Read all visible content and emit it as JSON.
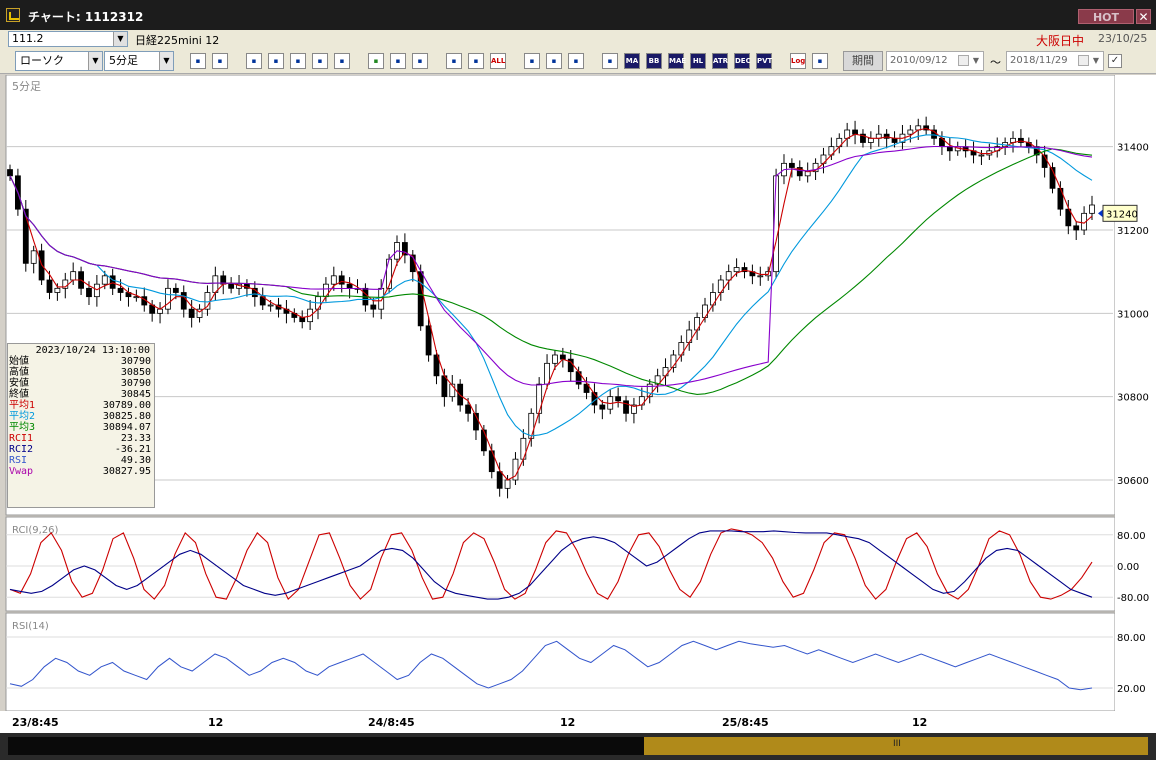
{
  "window": {
    "title": "チャート: 1112312",
    "hot_label": "HOT",
    "close_label": "✕"
  },
  "header": {
    "code": "111.2",
    "instrument": "日経225mini 12",
    "session": "大阪日中",
    "date": "23/10/25"
  },
  "toolbar": {
    "chart_type": "ローソク",
    "interval": "5分足",
    "buttons": [
      "zoom-icon",
      "crosshair-icon",
      "window-icon",
      "search-list-icon",
      "bar-chart-icon",
      "compare-icon",
      "alert-icon",
      "pencil-icon",
      "cursor-icon",
      "arrow-icon",
      "candle-icon",
      "bar-icon",
      "all-icon",
      "settings-icon",
      "tools-icon",
      "color-icon",
      "line-icon",
      "MA",
      "BB",
      "MAE",
      "HL",
      "ATR",
      "DEC",
      "PVT",
      "Log",
      "export-icon"
    ],
    "period_label": "期間",
    "start_date": "2010/09/12",
    "end_date": "2018/11/29",
    "tilde": "～",
    "check": "✓"
  },
  "info": {
    "timestamp": "2023/10/24  13:10:00",
    "rows": [
      {
        "label": "始値",
        "value": "30790"
      },
      {
        "label": "高値",
        "value": "30850"
      },
      {
        "label": "安値",
        "value": "30790"
      },
      {
        "label": "終値",
        "value": "30845"
      },
      {
        "label": "平均1",
        "value": "30789.00"
      },
      {
        "label": "平均2",
        "value": "30825.80"
      },
      {
        "label": "平均3",
        "value": "30894.07"
      },
      {
        "label": "RCI1",
        "value": "23.33"
      },
      {
        "label": "RCI2",
        "value": "-36.21"
      },
      {
        "label": "RSI",
        "value": "49.30"
      },
      {
        "label": "Vwap",
        "value": "30827.95"
      }
    ],
    "colors": [
      "#000000",
      "#000000",
      "#000000",
      "#000000",
      "#cc0000",
      "#0099dd",
      "#008800",
      "#cc0000",
      "#000088",
      "#3355cc",
      "#aa00aa"
    ]
  },
  "chart_data": [
    {
      "type": "candlestick",
      "panel_label": "5分足",
      "y_ticks": [
        "31400",
        "31200",
        "31000",
        "30800",
        "30600"
      ],
      "ylim": [
        30540,
        31560
      ],
      "last_price_label": "31240",
      "x_ticks": [
        "23/8:45",
        "12",
        "24/8:45",
        "12",
        "25/8:45",
        "12"
      ],
      "series": [
        {
          "name": "平均1",
          "color": "#cc0000"
        },
        {
          "name": "平均2",
          "color": "#0099dd"
        },
        {
          "name": "平均3",
          "color": "#008800"
        },
        {
          "name": "Vwap",
          "color": "#8800cc"
        }
      ],
      "close_path": [
        31330,
        31250,
        31120,
        31150,
        31080,
        31050,
        31060,
        31080,
        31100,
        31060,
        31040,
        31070,
        31090,
        31060,
        31050,
        31040,
        31040,
        31020,
        31000,
        31010,
        31060,
        31050,
        31010,
        30990,
        31010,
        31050,
        31090,
        31070,
        31060,
        31070,
        31060,
        31040,
        31020,
        31020,
        31010,
        31000,
        30990,
        30980,
        31010,
        31040,
        31070,
        31090,
        31070,
        31060,
        31060,
        31020,
        31010,
        31060,
        31130,
        31170,
        31140,
        31100,
        30970,
        30900,
        30850,
        30800,
        30830,
        30780,
        30760,
        30720,
        30670,
        30620,
        30580,
        30600,
        30650,
        30700,
        30760,
        30830,
        30880,
        30900,
        30890,
        30860,
        30830,
        30810,
        30780,
        30770,
        30800,
        30790,
        30760,
        30780,
        30800,
        30830,
        30850,
        30870,
        30900,
        30930,
        30960,
        30990,
        31020,
        31050,
        31080,
        31100,
        31110,
        31100,
        31090,
        31090,
        31100,
        31330,
        31360,
        31350,
        31330,
        31340,
        31360,
        31380,
        31400,
        31420,
        31440,
        31430,
        31410,
        31420,
        31430,
        31420,
        31410,
        31430,
        31440,
        31450,
        31440,
        31420,
        31400,
        31390,
        31400,
        31390,
        31380,
        31380,
        31390,
        31400,
        31410,
        31420,
        31410,
        31400,
        31380,
        31350,
        31300,
        31250,
        31210,
        31200,
        31240,
        31260
      ]
    },
    {
      "type": "line",
      "panel_label": "RCI(9,26)",
      "y_ticks": [
        "80.00",
        "0.00",
        "-80.00"
      ],
      "ylim": [
        -100,
        100
      ],
      "series": [
        {
          "name": "RCI1",
          "color": "#cc0000",
          "values": [
            -60,
            -70,
            -20,
            60,
            85,
            40,
            -40,
            -80,
            -70,
            -10,
            70,
            85,
            20,
            -60,
            -85,
            -50,
            30,
            85,
            60,
            -20,
            -80,
            -85,
            -30,
            40,
            85,
            60,
            -30,
            -85,
            -60,
            10,
            80,
            85,
            20,
            -50,
            -85,
            -60,
            20,
            80,
            85,
            40,
            -30,
            -85,
            -80,
            -20,
            60,
            85,
            70,
            10,
            -60,
            -85,
            -70,
            -10,
            60,
            90,
            85,
            40,
            -20,
            -70,
            -85,
            -40,
            30,
            80,
            85,
            50,
            -10,
            -60,
            -80,
            -40,
            30,
            85,
            95,
            90,
            80,
            60,
            20,
            -40,
            -80,
            -70,
            -10,
            60,
            85,
            80,
            20,
            -50,
            -85,
            -60,
            10,
            70,
            85,
            50,
            -20,
            -70,
            -85,
            -60,
            0,
            70,
            90,
            80,
            30,
            -40,
            -80,
            -85,
            -75,
            -60,
            -30,
            10
          ]
        },
        {
          "name": "RCI2",
          "color": "#000088",
          "values": [
            -60,
            -65,
            -70,
            -65,
            -50,
            -30,
            -10,
            0,
            -10,
            -30,
            -50,
            -60,
            -50,
            -30,
            -10,
            10,
            30,
            40,
            30,
            10,
            -10,
            -30,
            -50,
            -60,
            -70,
            -75,
            -70,
            -60,
            -50,
            -40,
            -30,
            -20,
            -10,
            0,
            20,
            40,
            45,
            40,
            20,
            -10,
            -40,
            -60,
            -70,
            -75,
            -80,
            -85,
            -85,
            -80,
            -70,
            -50,
            -20,
            10,
            40,
            60,
            70,
            75,
            70,
            60,
            40,
            20,
            0,
            10,
            30,
            50,
            70,
            85,
            90,
            90,
            90,
            88,
            88,
            88,
            90,
            88,
            86,
            85,
            85,
            85,
            80,
            75,
            70,
            60,
            40,
            20,
            0,
            -20,
            -40,
            -60,
            -70,
            -65,
            -40,
            -10,
            20,
            40,
            45,
            40,
            20,
            0,
            -20,
            -40,
            -60,
            -70,
            -80
          ]
        }
      ]
    },
    {
      "type": "line",
      "panel_label": "RSI(14)",
      "y_ticks": [
        "80.00",
        "20.00"
      ],
      "ylim": [
        0,
        100
      ],
      "series": [
        {
          "name": "RSI",
          "color": "#3355cc",
          "values": [
            25,
            22,
            30,
            45,
            55,
            50,
            40,
            35,
            45,
            50,
            40,
            35,
            30,
            45,
            55,
            45,
            40,
            50,
            60,
            55,
            45,
            35,
            40,
            50,
            55,
            50,
            40,
            35,
            45,
            50,
            55,
            60,
            50,
            40,
            30,
            35,
            50,
            60,
            55,
            45,
            35,
            25,
            20,
            25,
            30,
            40,
            55,
            70,
            75,
            65,
            55,
            50,
            60,
            70,
            65,
            55,
            45,
            50,
            60,
            70,
            75,
            70,
            65,
            70,
            75,
            72,
            70,
            68,
            70,
            65,
            60,
            65,
            60,
            55,
            50,
            55,
            60,
            55,
            50,
            55,
            60,
            55,
            50,
            45,
            50,
            55,
            60,
            55,
            50,
            45,
            40,
            35,
            30,
            20,
            18,
            20
          ]
        }
      ]
    }
  ],
  "scrollbar": {
    "grip": "III"
  }
}
